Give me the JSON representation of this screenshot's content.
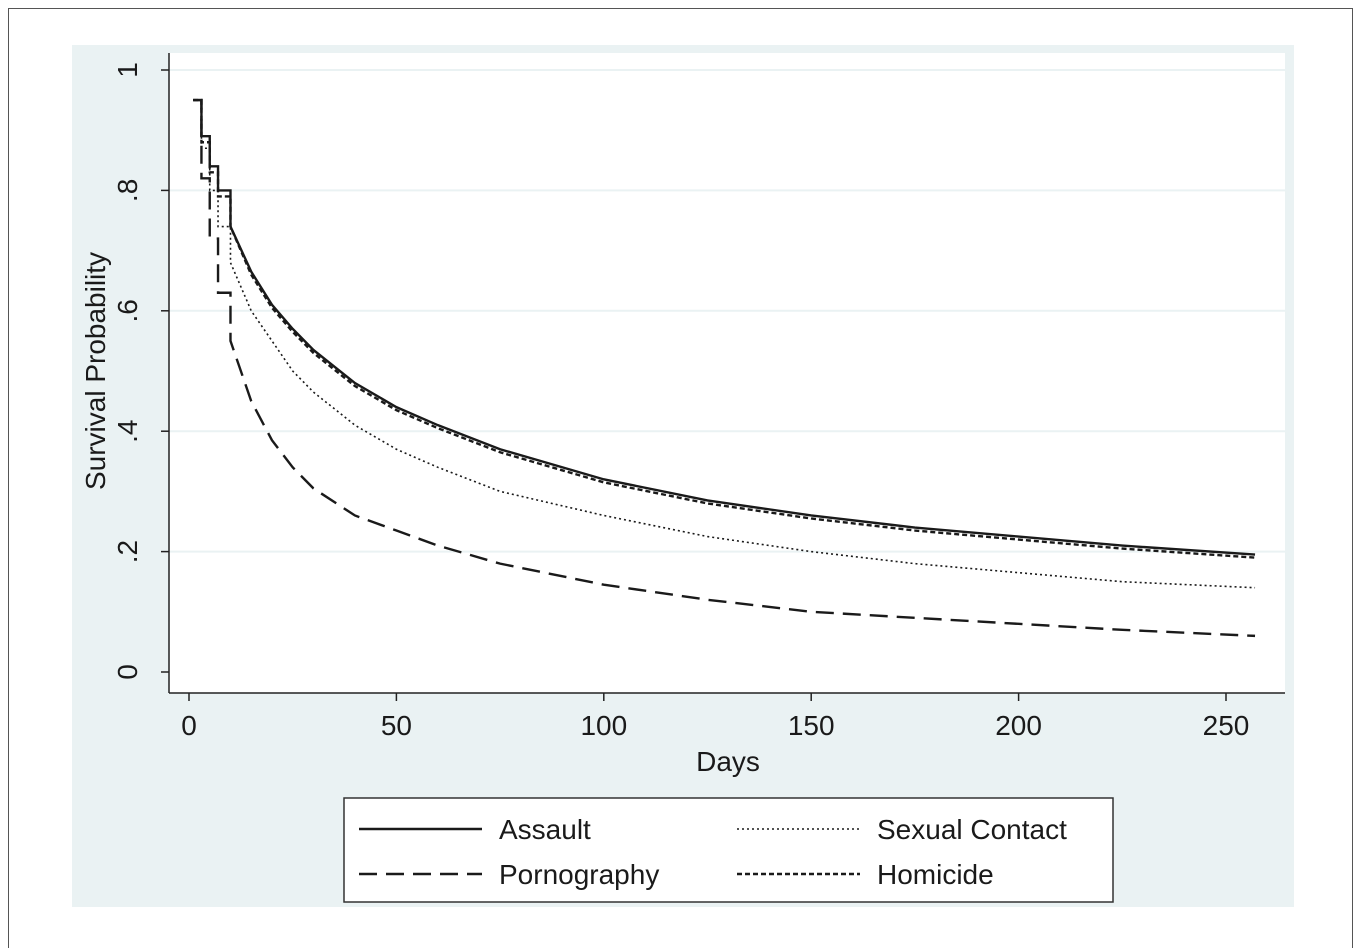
{
  "chart_data": {
    "type": "line",
    "xlabel": "Days",
    "ylabel": "Survival Probability",
    "xlim": [
      0,
      257
    ],
    "ylim": [
      0,
      1
    ],
    "x_ticks": [
      0,
      50,
      100,
      150,
      200,
      250
    ],
    "x_tick_labels": [
      "0",
      "50",
      "100",
      "150",
      "200",
      "250"
    ],
    "y_ticks": [
      0,
      0.2,
      0.4,
      0.6,
      0.8,
      1
    ],
    "y_tick_labels": [
      "0",
      ".2",
      ".4",
      ".6",
      ".8",
      "1"
    ],
    "grid": true,
    "legend_position": "bottom",
    "colors": {
      "plot_background": "#ffffff",
      "outer_background": "#eaf2f3",
      "gridline": "#eaf2f3",
      "line": "#1a1a1a"
    },
    "series": [
      {
        "name": "Assault",
        "style": "solid",
        "x": [
          1,
          3,
          5,
          7,
          10,
          15,
          20,
          25,
          30,
          40,
          50,
          60,
          75,
          100,
          125,
          150,
          175,
          200,
          225,
          257
        ],
        "values": [
          0.95,
          0.89,
          0.84,
          0.8,
          0.74,
          0.665,
          0.61,
          0.57,
          0.535,
          0.48,
          0.44,
          0.41,
          0.37,
          0.32,
          0.285,
          0.26,
          0.24,
          0.225,
          0.21,
          0.195
        ]
      },
      {
        "name": "Pornography",
        "style": "dashed",
        "x": [
          1,
          3,
          5,
          7,
          10,
          15,
          20,
          25,
          30,
          40,
          50,
          60,
          75,
          100,
          125,
          150,
          175,
          200,
          225,
          257
        ],
        "values": [
          0.95,
          0.82,
          0.72,
          0.63,
          0.55,
          0.45,
          0.385,
          0.34,
          0.305,
          0.26,
          0.235,
          0.21,
          0.18,
          0.145,
          0.12,
          0.1,
          0.09,
          0.08,
          0.07,
          0.06
        ]
      },
      {
        "name": "Sexual Contact",
        "style": "dotted",
        "x": [
          1,
          3,
          5,
          7,
          10,
          15,
          20,
          25,
          30,
          40,
          50,
          60,
          75,
          100,
          125,
          150,
          175,
          200,
          225,
          257
        ],
        "values": [
          0.95,
          0.87,
          0.8,
          0.74,
          0.68,
          0.6,
          0.55,
          0.5,
          0.465,
          0.41,
          0.37,
          0.34,
          0.3,
          0.26,
          0.225,
          0.2,
          0.18,
          0.165,
          0.15,
          0.14
        ]
      },
      {
        "name": "Homicide",
        "style": "short-dash",
        "x": [
          1,
          3,
          5,
          7,
          10,
          15,
          20,
          25,
          30,
          40,
          50,
          60,
          75,
          100,
          125,
          150,
          175,
          200,
          225,
          257
        ],
        "values": [
          0.95,
          0.88,
          0.83,
          0.79,
          0.74,
          0.66,
          0.605,
          0.565,
          0.53,
          0.475,
          0.435,
          0.405,
          0.365,
          0.315,
          0.28,
          0.255,
          0.235,
          0.22,
          0.205,
          0.19
        ]
      }
    ]
  }
}
